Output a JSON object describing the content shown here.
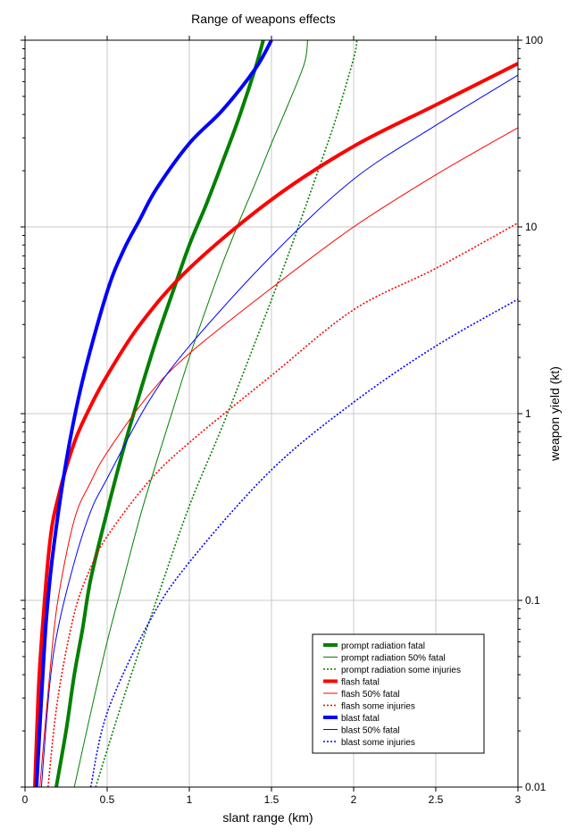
{
  "chart_data": {
    "type": "line",
    "title": "Range of weapons effects",
    "xlabel": "slant range (km)",
    "ylabel": "weapon yield (kt)",
    "xlim": [
      0,
      3
    ],
    "ylim": [
      0.01,
      100
    ],
    "yscale": "log",
    "x_ticks": [
      0,
      0.5,
      1,
      1.5,
      2,
      2.5,
      3
    ],
    "x_tick_labels": [
      "0",
      "0.5",
      "1",
      "1.5",
      "2",
      "2.5",
      "3"
    ],
    "y_ticks": [
      0.01,
      0.1,
      1,
      10,
      100
    ],
    "y_tick_labels": [
      "0.01",
      "0.1",
      "1",
      "10",
      "100"
    ],
    "grid": true,
    "legend_position": "bottom-right",
    "series": [
      {
        "name": "prompt radiation fatal",
        "color": "#008000",
        "style": "thick",
        "points": [
          [
            0.19,
            0.01
          ],
          [
            0.25,
            0.02
          ],
          [
            0.3,
            0.04
          ],
          [
            0.35,
            0.07
          ],
          [
            0.4,
            0.13
          ],
          [
            0.5,
            0.3
          ],
          [
            0.6,
            0.65
          ],
          [
            0.7,
            1.3
          ],
          [
            0.8,
            2.5
          ],
          [
            0.9,
            4.5
          ],
          [
            1.0,
            8
          ],
          [
            1.1,
            13
          ],
          [
            1.2,
            22
          ],
          [
            1.3,
            38
          ],
          [
            1.4,
            70
          ],
          [
            1.45,
            100
          ]
        ]
      },
      {
        "name": "prompt radiation 50% fatal",
        "color": "#008000",
        "style": "thin",
        "points": [
          [
            0.3,
            0.01
          ],
          [
            0.4,
            0.025
          ],
          [
            0.5,
            0.06
          ],
          [
            0.6,
            0.13
          ],
          [
            0.7,
            0.28
          ],
          [
            0.8,
            0.55
          ],
          [
            0.9,
            1.05
          ],
          [
            1.0,
            2
          ],
          [
            1.1,
            3.6
          ],
          [
            1.2,
            6.3
          ],
          [
            1.3,
            10.5
          ],
          [
            1.4,
            17
          ],
          [
            1.5,
            28
          ],
          [
            1.6,
            45
          ],
          [
            1.7,
            75
          ],
          [
            1.72,
            100
          ]
        ]
      },
      {
        "name": "prompt radiation some injuries",
        "color": "#008000",
        "style": "dotted",
        "points": [
          [
            0.43,
            0.01
          ],
          [
            0.6,
            0.03
          ],
          [
            0.8,
            0.1
          ],
          [
            1.0,
            0.32
          ],
          [
            1.2,
            0.85
          ],
          [
            1.4,
            2.4
          ],
          [
            1.6,
            7
          ],
          [
            1.8,
            22
          ],
          [
            1.9,
            40
          ],
          [
            2.0,
            80
          ],
          [
            2.02,
            100
          ]
        ]
      },
      {
        "name": "flash fatal",
        "color": "#ff0000",
        "style": "thick",
        "points": [
          [
            0.06,
            0.01
          ],
          [
            0.08,
            0.03
          ],
          [
            0.1,
            0.06
          ],
          [
            0.15,
            0.2
          ],
          [
            0.2,
            0.35
          ],
          [
            0.3,
            0.7
          ],
          [
            0.4,
            1.1
          ],
          [
            0.5,
            1.6
          ],
          [
            0.7,
            3.0
          ],
          [
            1.0,
            6
          ],
          [
            1.5,
            14
          ],
          [
            2.0,
            27
          ],
          [
            2.5,
            45
          ],
          [
            3.0,
            75
          ]
        ]
      },
      {
        "name": "flash 50% fatal",
        "color": "#ff0000",
        "style": "thin",
        "points": [
          [
            0.09,
            0.01
          ],
          [
            0.15,
            0.04
          ],
          [
            0.2,
            0.1
          ],
          [
            0.3,
            0.27
          ],
          [
            0.4,
            0.43
          ],
          [
            0.5,
            0.62
          ],
          [
            0.75,
            1.25
          ],
          [
            1.0,
            2.1
          ],
          [
            1.5,
            4.7
          ],
          [
            2.0,
            10
          ],
          [
            2.5,
            19
          ],
          [
            3.0,
            34
          ]
        ]
      },
      {
        "name": "flash some injuries",
        "color": "#ff0000",
        "style": "dotted",
        "points": [
          [
            0.14,
            0.01
          ],
          [
            0.2,
            0.03
          ],
          [
            0.3,
            0.085
          ],
          [
            0.4,
            0.15
          ],
          [
            0.5,
            0.22
          ],
          [
            0.75,
            0.43
          ],
          [
            1.0,
            0.7
          ],
          [
            1.5,
            1.6
          ],
          [
            2.0,
            3.6
          ],
          [
            2.5,
            6
          ],
          [
            3.0,
            10.5
          ]
        ]
      },
      {
        "name": "blast fatal",
        "color": "#0000ff",
        "style": "thick",
        "points": [
          [
            0.07,
            0.01
          ],
          [
            0.1,
            0.03
          ],
          [
            0.13,
            0.08
          ],
          [
            0.17,
            0.18
          ],
          [
            0.25,
            0.55
          ],
          [
            0.35,
            1.5
          ],
          [
            0.5,
            4.5
          ],
          [
            0.6,
            7.5
          ],
          [
            0.7,
            11
          ],
          [
            0.8,
            16
          ],
          [
            1.0,
            28
          ],
          [
            1.2,
            42
          ],
          [
            1.4,
            70
          ],
          [
            1.5,
            100
          ]
        ]
      },
      {
        "name": "blast 50% fatal",
        "color": "#0000ff",
        "style": "thin",
        "points": [
          [
            0.1,
            0.01
          ],
          [
            0.15,
            0.035
          ],
          [
            0.2,
            0.07
          ],
          [
            0.3,
            0.16
          ],
          [
            0.4,
            0.3
          ],
          [
            0.5,
            0.45
          ],
          [
            0.75,
            1.15
          ],
          [
            1.0,
            2.3
          ],
          [
            1.5,
            7
          ],
          [
            2.0,
            18
          ],
          [
            2.5,
            35
          ],
          [
            3.0,
            65
          ]
        ]
      },
      {
        "name": "blast some injuries",
        "color": "#0000ff",
        "style": "dotted",
        "points": [
          [
            0.4,
            0.01
          ],
          [
            0.5,
            0.025
          ],
          [
            0.75,
            0.075
          ],
          [
            1.0,
            0.16
          ],
          [
            1.5,
            0.5
          ],
          [
            2.0,
            1.15
          ],
          [
            2.5,
            2.3
          ],
          [
            3.0,
            4.1
          ]
        ]
      }
    ]
  }
}
